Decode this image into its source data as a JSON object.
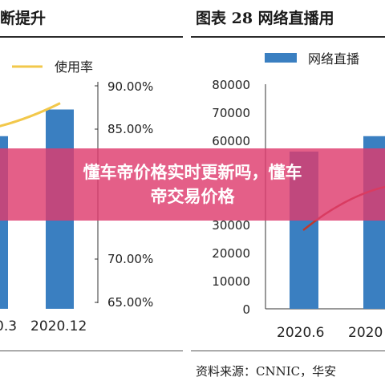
{
  "panels": {
    "left_title": "断提升",
    "right_title": "图表 28  网络直播用"
  },
  "chart_data": [
    {
      "type": "bar",
      "categories": [
        "0.3",
        "2020.12"
      ],
      "series": [
        {
          "name": "",
          "values": [
            null,
            71000
          ],
          "color": "#3a7fc1"
        },
        {
          "name": "使用率",
          "type": "line",
          "values": [
            0.856,
            0.88
          ],
          "color": "#f2c84b"
        }
      ],
      "y2_ticks": [
        "90.00%",
        "85.00%",
        "70.00%",
        "65.00%"
      ],
      "y2lim": [
        0.65,
        0.9
      ]
    },
    {
      "type": "bar",
      "categories": [
        "2020.6",
        "2020"
      ],
      "series": [
        {
          "name": "网络直播",
          "values": [
            56000,
            61500
          ],
          "color": "#3a7fc1"
        }
      ],
      "y_ticks": [
        "80000",
        "70000",
        "60000",
        "30000",
        "20000",
        "10000",
        "0"
      ],
      "ylim": [
        0,
        80000
      ],
      "line_color": "#c0392b"
    }
  ],
  "source": "资料来源：CNNIC，华安",
  "overlay": {
    "line1": "懂车帝价格实时更新吗，懂车",
    "line2": "帝交易价格"
  }
}
